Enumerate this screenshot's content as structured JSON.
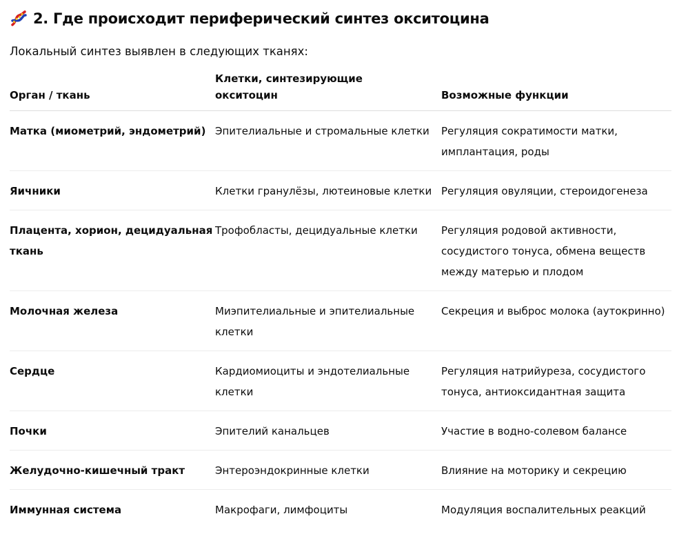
{
  "heading": {
    "icon": "dna-icon",
    "title": "2. Где происходит периферический синтез окситоцина"
  },
  "intro": "Локальный синтез выявлен в следующих тканях:",
  "table": {
    "headers": [
      "Орган / ткань",
      "Клетки, синтезирующие окситоцин",
      "Возможные функции"
    ],
    "rows": [
      [
        "Матка (миометрий, эндометрий)",
        "Эпителиальные и стромальные клетки",
        "Регуляция сократимости матки, имплантация, роды"
      ],
      [
        "Яичники",
        "Клетки гранулёзы, лютеиновые клетки",
        "Регуляция овуляции, стероидогенеза"
      ],
      [
        "Плацента, хорион, децидуальная ткань",
        "Трофобласты, децидуальные клетки",
        "Регуляция родовой активности, сосудистого тонуса, обмена веществ между матерью и плодом"
      ],
      [
        "Молочная железа",
        "Миэпителиальные и эпителиальные клетки",
        "Секреция и выброс молока (аутокринно)"
      ],
      [
        "Сердце",
        "Кардиомиоциты и эндотелиальные клетки",
        "Регуляция натрийуреза, сосудистого тонуса, антиоксидантная защита"
      ],
      [
        "Почки",
        "Эпителий канальцев",
        "Участие в водно-солевом балансе"
      ],
      [
        "Желудочно-кишечный тракт",
        "Энтероэндокринные клетки",
        "Влияние на моторику и секрецию"
      ],
      [
        "Иммунная система",
        "Макрофаги, лимфоциты",
        "Модуляция воспалительных реакций"
      ]
    ]
  }
}
